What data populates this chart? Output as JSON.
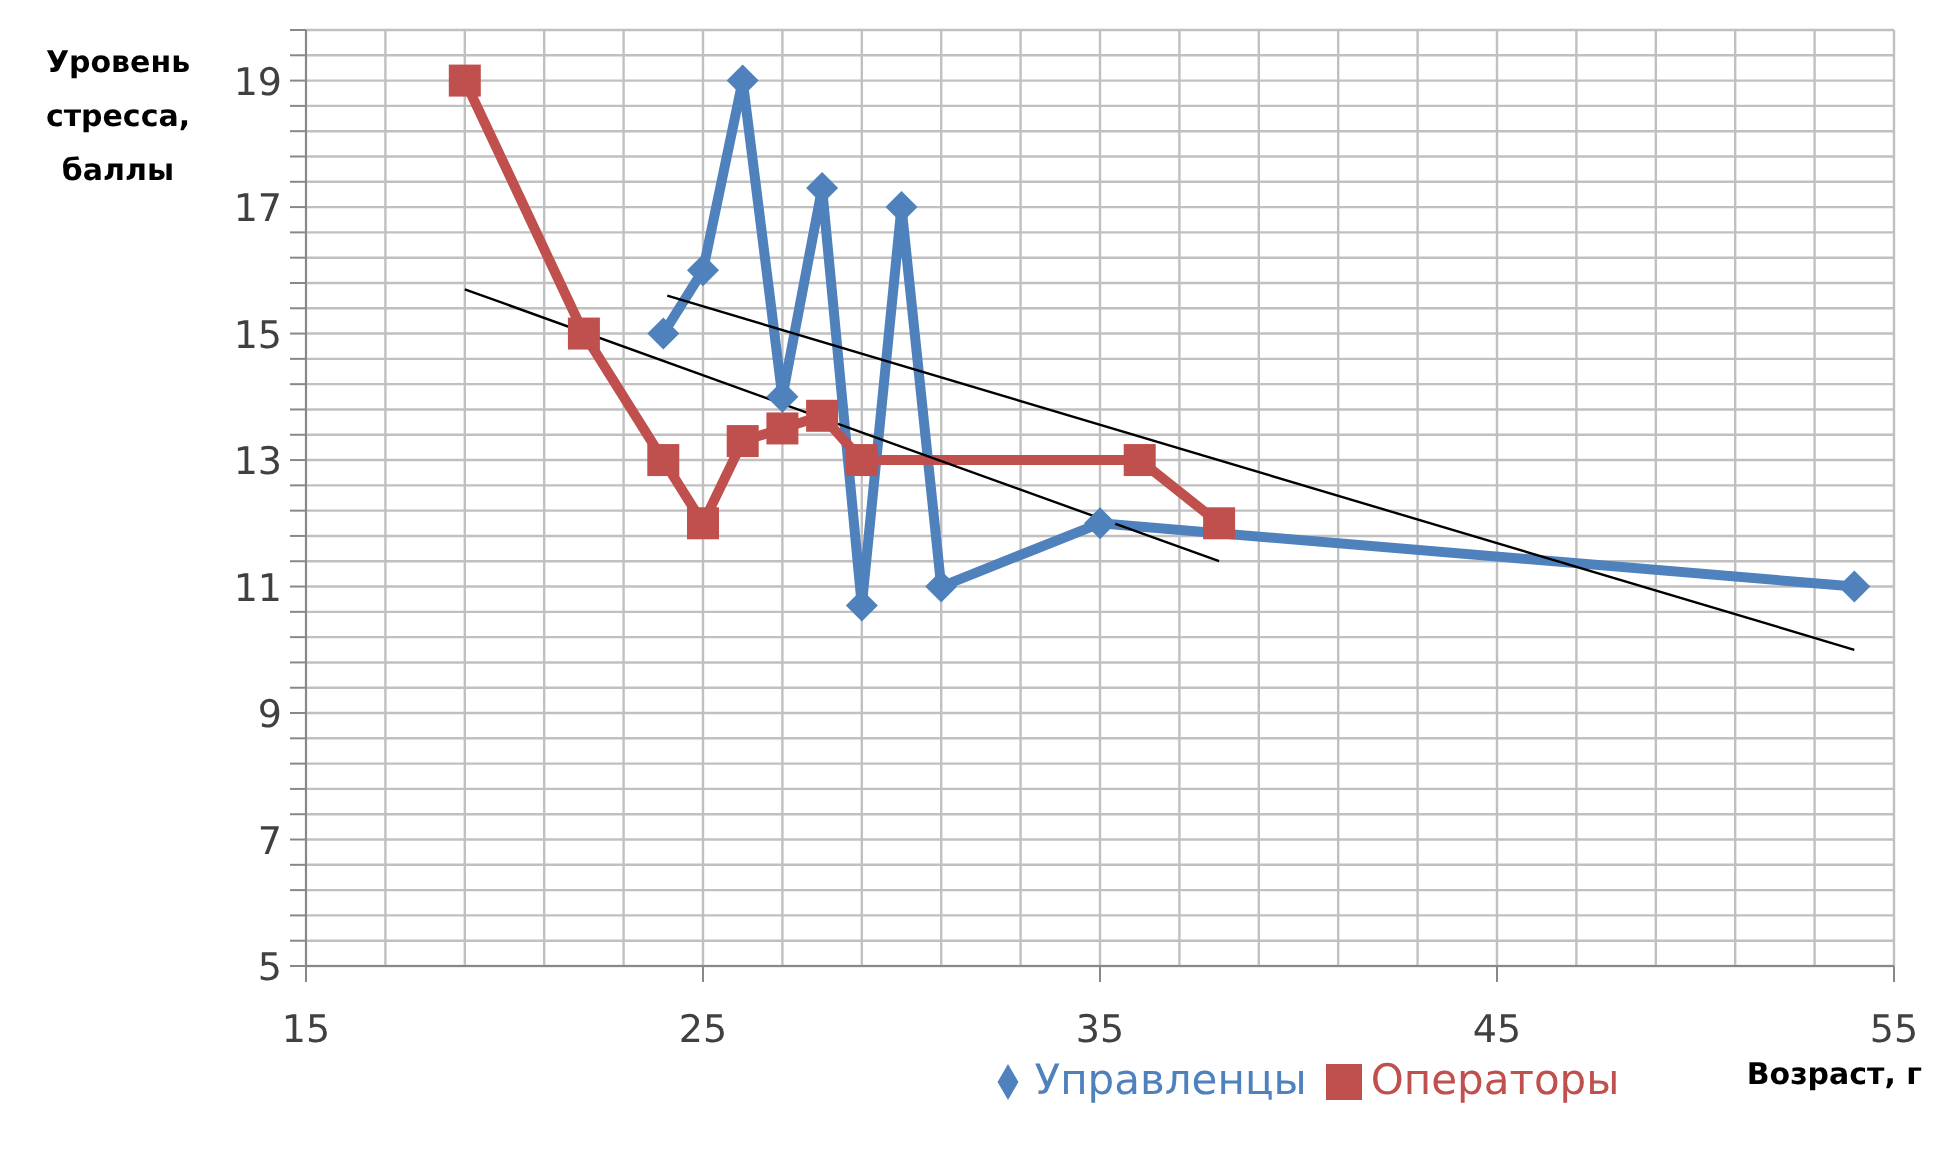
{
  "chart_data": {
    "type": "line",
    "xlabel": "Возраст, г",
    "ylabel": "Уровень стресса, баллы",
    "xlim": [
      15,
      55
    ],
    "ylim": [
      5,
      19.8
    ],
    "xticks": [
      15,
      {
        "value": 17,
        "label": null
      },
      {
        "value": 19,
        "label": null
      },
      {
        "value": 21,
        "label": null
      },
      {
        "value": 23,
        "label": null
      },
      25,
      {
        "value": 27,
        "label": null
      },
      {
        "value": 29,
        "label": null
      },
      {
        "value": 31,
        "label": null
      },
      {
        "value": 33,
        "label": null
      },
      35,
      {
        "value": 37,
        "label": null
      },
      {
        "value": 39,
        "label": null
      },
      {
        "value": 41,
        "label": null
      },
      {
        "value": 43,
        "label": null
      },
      45,
      {
        "value": 47,
        "label": null
      },
      {
        "value": 49,
        "label": null
      },
      {
        "value": 51,
        "label": null
      },
      {
        "value": 53,
        "label": null
      },
      55
    ],
    "yticks": [
      5,
      {
        "value": 5.4,
        "label": null
      },
      {
        "value": 5.8,
        "label": null
      },
      {
        "value": 6.2,
        "label": null
      },
      {
        "value": 6.6,
        "label": null
      },
      7,
      {
        "value": 7.4,
        "label": null
      },
      {
        "value": 7.8,
        "label": null
      },
      {
        "value": 8.2,
        "label": null
      },
      {
        "value": 8.6,
        "label": null
      },
      9,
      {
        "value": 9.4,
        "label": null
      },
      {
        "value": 9.8,
        "label": null
      },
      {
        "value": 10.2,
        "label": null
      },
      {
        "value": 10.6,
        "label": null
      },
      11,
      {
        "value": 11.4,
        "label": null
      },
      {
        "value": 11.8,
        "label": null
      },
      {
        "value": 12.2,
        "label": null
      },
      {
        "value": 12.6,
        "label": null
      },
      13,
      {
        "value": 13.4,
        "label": null
      },
      {
        "value": 13.8,
        "label": null
      },
      {
        "value": 14.2,
        "label": null
      },
      {
        "value": 14.6,
        "label": null
      },
      15,
      {
        "value": 15.4,
        "label": null
      },
      {
        "value": 15.8,
        "label": null
      },
      {
        "value": 16.2,
        "label": null
      },
      {
        "value": 16.6,
        "label": null
      },
      17,
      {
        "value": 17.4,
        "label": null
      },
      {
        "value": 17.8,
        "label": null
      },
      {
        "value": 18.2,
        "label": null
      },
      {
        "value": 18.6,
        "label": null
      },
      19,
      {
        "value": 19.4,
        "label": null
      },
      {
        "value": 19.8,
        "label": null
      }
    ],
    "grid": true,
    "legend": "bottom",
    "line_style": "solid",
    "series": [
      {
        "name": "Управленцы",
        "color": "#4f81bd",
        "marker": "diamond",
        "x": [
          24,
          25,
          26,
          27,
          28,
          29,
          30,
          31,
          35,
          54
        ],
        "values": [
          15,
          16,
          19,
          14,
          17.3,
          10.7,
          17,
          11,
          12,
          11
        ]
      },
      {
        "name": "Операторы",
        "color": "#c0504d",
        "marker": "square",
        "x": [
          19,
          22,
          24,
          25,
          26,
          27,
          28,
          29,
          36,
          38
        ],
        "values": [
          19,
          15,
          13,
          12,
          13.3,
          13.5,
          13.7,
          13,
          13,
          12
        ]
      },
      {
        "type": "line",
        "color": "#000000",
        "marker": "none",
        "x": [
          19,
          38
        ],
        "values": [
          15.7,
          11.4
        ]
      },
      {
        "type": "line",
        "color": "#000000",
        "marker": "none",
        "x": [
          24.1,
          54
        ],
        "values": [
          15.6,
          10
        ]
      }
    ]
  }
}
